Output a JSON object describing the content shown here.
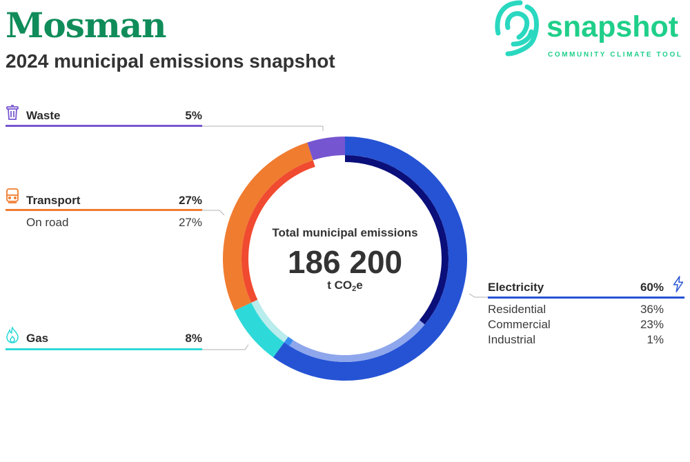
{
  "header": {
    "title": "Mosman",
    "subtitle": "2024 municipal emissions snapshot"
  },
  "logo": {
    "word": "snapshot",
    "tagline": "COMMUNITY CLIMATE TOOL"
  },
  "center": {
    "label": "Total municipal emissions",
    "value": "186 200",
    "unit_prefix": "t CO",
    "unit_sub": "2",
    "unit_suffix": "e"
  },
  "colors": {
    "electricity": "#2553d4",
    "electricity_inner": "#0b0f7a",
    "electricity_inner_light": "#8ea6ec",
    "electricity_inner_tiny": "#3a8df0",
    "gas": "#2ed9d9",
    "gas_inner": "#b9ecec",
    "transport": "#f07c30",
    "transport_inner": "#f04a30",
    "waste": "#7655d0",
    "title": "#0f8c5a",
    "brand": "#1fcf8a"
  },
  "chart_data": {
    "type": "pie",
    "title": "Total municipal emissions",
    "total": "186 200",
    "unit": "t CO2e",
    "series": [
      {
        "name": "Electricity",
        "value": 60,
        "label": "60%",
        "icon": "lightning-icon",
        "subcategories": [
          {
            "name": "Residential",
            "value": 36,
            "label": "36%"
          },
          {
            "name": "Commercial",
            "value": 23,
            "label": "23%"
          },
          {
            "name": "Industrial",
            "value": 1,
            "label": "1%"
          }
        ]
      },
      {
        "name": "Gas",
        "value": 8,
        "label": "8%",
        "icon": "flame-icon",
        "subcategories": []
      },
      {
        "name": "Transport",
        "value": 27,
        "label": "27%",
        "icon": "train-icon",
        "subcategories": [
          {
            "name": "On road",
            "value": 27,
            "label": "27%"
          }
        ]
      },
      {
        "name": "Waste",
        "value": 5,
        "label": "5%",
        "icon": "trash-icon",
        "subcategories": []
      }
    ]
  }
}
